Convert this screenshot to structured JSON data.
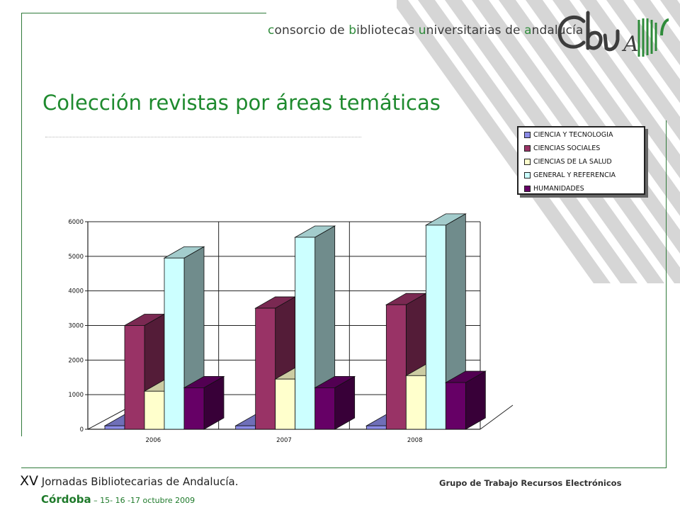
{
  "header": {
    "text_parts": [
      {
        "text": "c",
        "hl": true
      },
      {
        "text": "onsorcio de ",
        "hl": false
      },
      {
        "text": "b",
        "hl": true
      },
      {
        "text": "ibliotecas ",
        "hl": false
      },
      {
        "text": "u",
        "hl": true
      },
      {
        "text": "niversitarias de ",
        "hl": false
      },
      {
        "text": "a",
        "hl": true
      },
      {
        "text": "ndalucía",
        "hl": false
      }
    ],
    "logo_text": "CbUA"
  },
  "slide": {
    "title": "Colección revistas por áreas temáticas"
  },
  "footer": {
    "xv": "XV",
    "jornadas": " Jornadas Bibliotecarias de Andalucía.",
    "city": "Córdoba",
    "dates": " – 15- 16 -17 octubre 2009",
    "group": "Grupo de Trabajo Recursos Electrónicos"
  },
  "colors": {
    "frame": "#2f7a3a",
    "title": "#1e8a2e",
    "stripes": "#d4d4d4"
  },
  "chart_data": {
    "type": "bar",
    "subtype": "3d-clustered",
    "title": "",
    "xlabel": "",
    "ylabel": "",
    "categories": [
      "2006",
      "2007",
      "2008"
    ],
    "ylim": [
      0,
      6000
    ],
    "yticks": [
      "0",
      "1000",
      "2000",
      "3000",
      "4000",
      "5000",
      "6000"
    ],
    "grid": true,
    "legend_position": "top-right",
    "series": [
      {
        "name": "CIENCIA Y TECNOLOGIA",
        "color": "#8b8be6",
        "values": [
          100,
          100,
          100
        ]
      },
      {
        "name": "CIENCIAS SOCIALES",
        "color": "#993366",
        "values": [
          3000,
          3500,
          3600
        ]
      },
      {
        "name": "CIENCIAS DE LA SALUD",
        "color": "#ffffcc",
        "values": [
          1100,
          1450,
          1550
        ]
      },
      {
        "name": "GENERAL Y REFERENCIA",
        "color": "#ccffff",
        "values": [
          4950,
          5550,
          5900
        ]
      },
      {
        "name": "HUMANIDADES",
        "color": "#660066",
        "values": [
          1200,
          1200,
          1350
        ]
      }
    ]
  }
}
